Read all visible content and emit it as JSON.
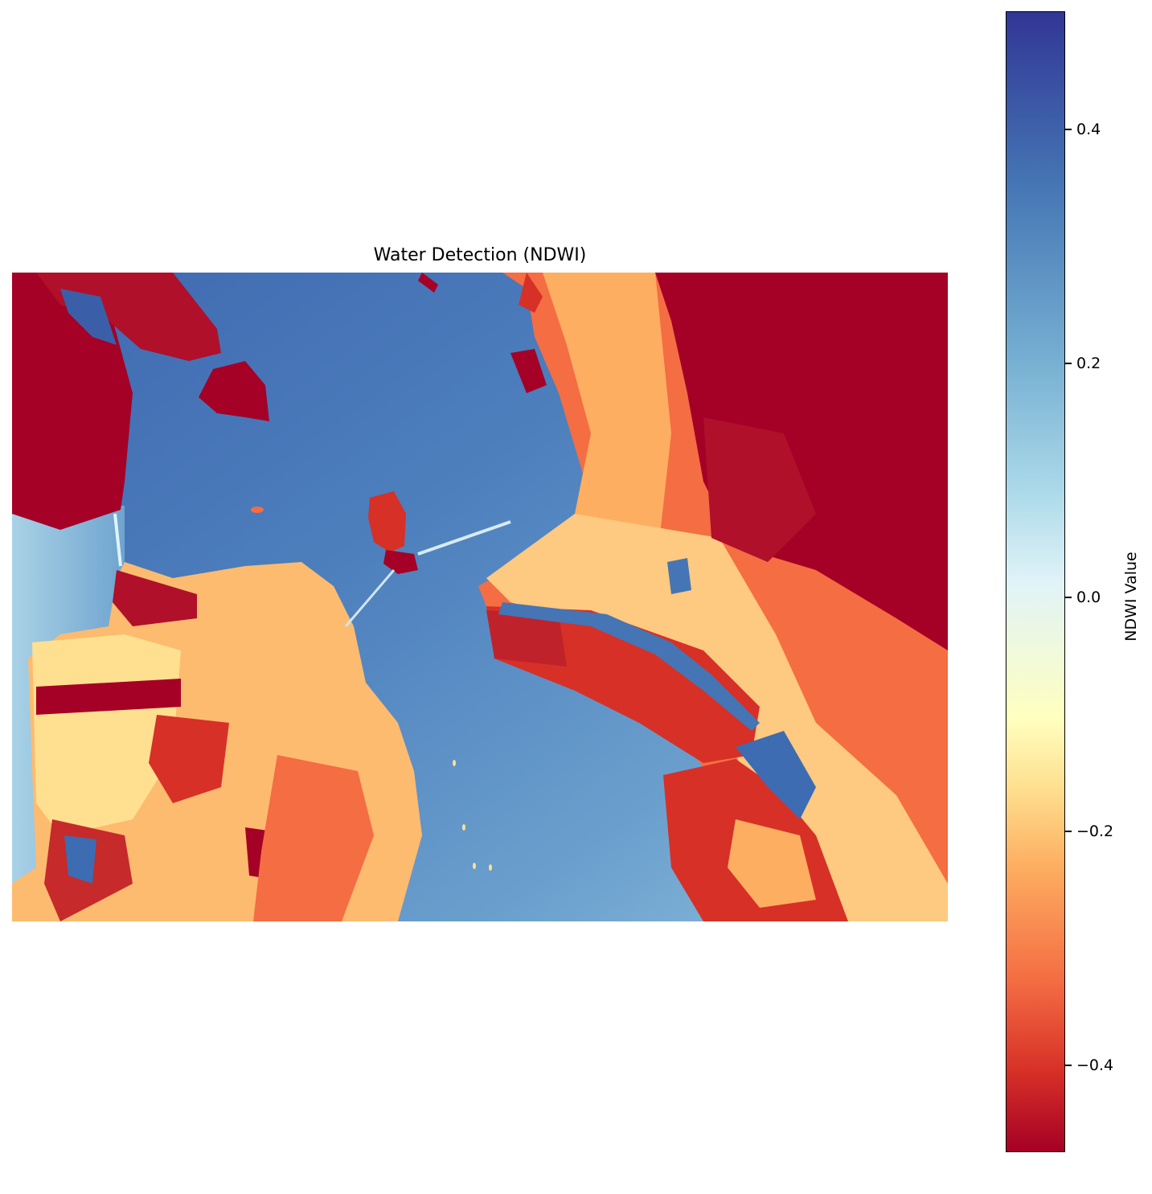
{
  "title": "Water Detection (NDWI)",
  "colorbar": {
    "label": "NDWI Value",
    "colormap": "RdYlBu",
    "range": [
      -0.5,
      0.5
    ],
    "ticks": [
      {
        "value": 0.4,
        "label": "0.4"
      },
      {
        "value": 0.2,
        "label": "0.2"
      },
      {
        "value": 0.0,
        "label": "0.0"
      },
      {
        "value": -0.2,
        "label": "−0.2"
      },
      {
        "value": -0.4,
        "label": "−0.4"
      }
    ]
  },
  "colors": {
    "water_high": "#313695",
    "water": "#4575b4",
    "shallow_water": "#abd9e9",
    "neutral": "#ffffbf",
    "urban": "#fdae61",
    "vegetation": "#a50026"
  }
}
